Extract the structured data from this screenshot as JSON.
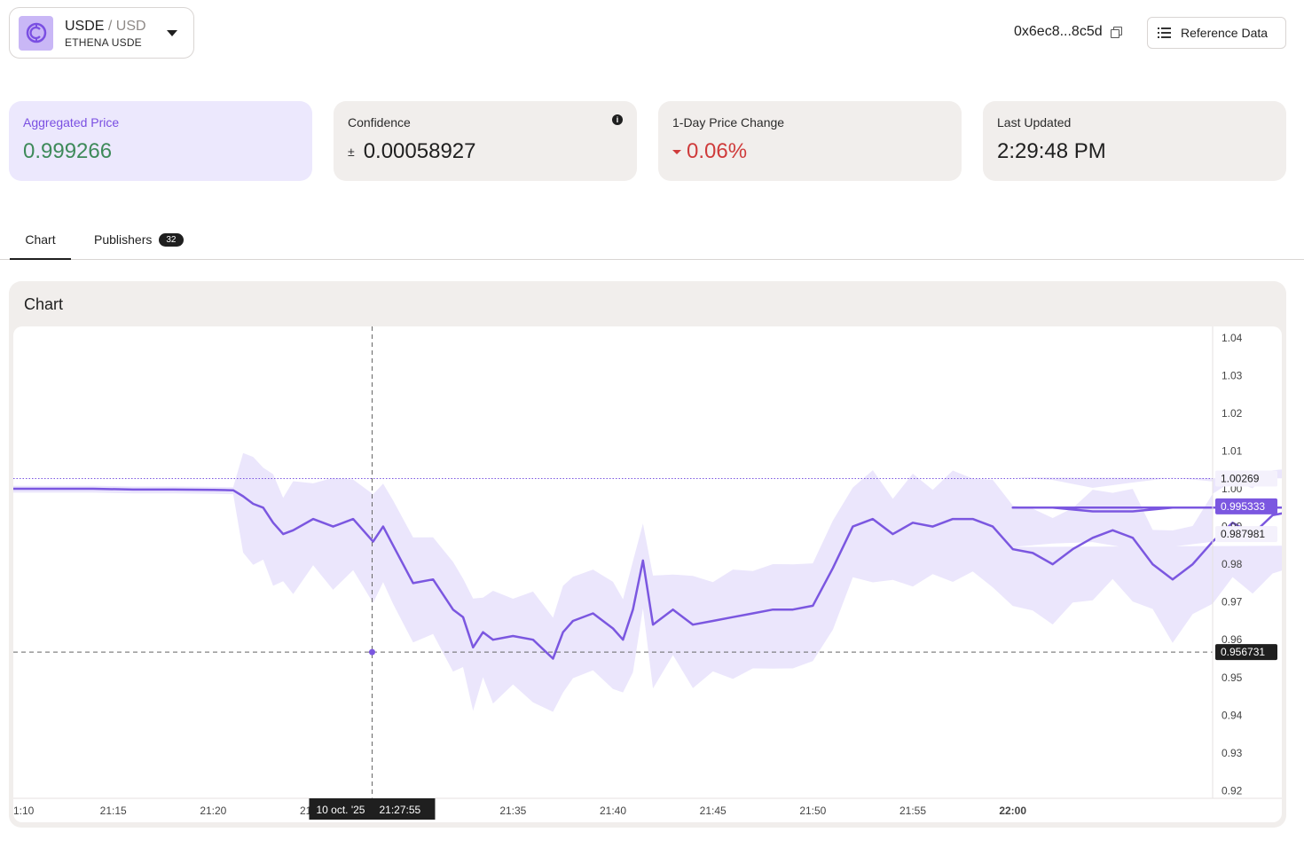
{
  "header": {
    "symbol_base": "USDE",
    "symbol_quote": "/ USD",
    "symbol_desc": "ETHENA USDE",
    "address": "0x6ec8...8c5d",
    "reference_button": "Reference Data"
  },
  "stats": {
    "aggregated_label": "Aggregated Price",
    "aggregated_value": "0.999266",
    "confidence_label": "Confidence",
    "confidence_value": "0.00058927",
    "change_label": "1-Day Price Change",
    "change_value": "0.06%",
    "updated_label": "Last Updated",
    "updated_value": "2:29:48 PM"
  },
  "tabs": {
    "chart": "Chart",
    "publishers": "Publishers",
    "publishers_count": "32"
  },
  "chart_panel": {
    "title": "Chart"
  },
  "colors": {
    "accent": "#7b57e0",
    "band": "#ebe6fc",
    "positive": "#3e8a5a",
    "negative": "#cf3b3b"
  },
  "chart_data": {
    "type": "line",
    "x_ticks": [
      "1:10",
      "21:15",
      "21:20",
      "21:25",
      "21:30",
      "21:35",
      "21:40",
      "21:45",
      "21:50",
      "21:55",
      "22:00"
    ],
    "y_ticks": [
      "1.04",
      "1.03",
      "1.02",
      "1.01",
      "1.00",
      "0.99",
      "0.98",
      "0.97",
      "0.96",
      "0.95",
      "0.94",
      "0.93",
      "0.92"
    ],
    "ylim": [
      0.918,
      1.043
    ],
    "series": [
      {
        "values": [
          [
            21.1,
            1.0
          ],
          [
            21.12,
            1.0
          ],
          [
            21.14,
            1.0
          ],
          [
            21.16,
            0.9998
          ],
          [
            21.18,
            0.9998
          ],
          [
            21.2,
            0.9997
          ],
          [
            21.21,
            0.9996
          ],
          [
            21.215,
            0.998
          ],
          [
            21.22,
            0.996
          ],
          [
            21.225,
            0.995
          ],
          [
            21.23,
            0.991
          ],
          [
            21.235,
            0.988
          ],
          [
            21.24,
            0.989
          ],
          [
            21.25,
            0.992
          ],
          [
            21.26,
            0.99
          ],
          [
            21.27,
            0.992
          ],
          [
            21.28,
            0.986
          ],
          [
            21.285,
            0.99
          ],
          [
            21.29,
            0.985
          ],
          [
            21.3,
            0.975
          ],
          [
            21.31,
            0.976
          ],
          [
            21.32,
            0.968
          ],
          [
            21.325,
            0.966
          ],
          [
            21.33,
            0.958
          ],
          [
            21.335,
            0.962
          ],
          [
            21.34,
            0.96
          ],
          [
            21.35,
            0.961
          ],
          [
            21.36,
            0.96
          ],
          [
            21.37,
            0.955
          ],
          [
            21.375,
            0.962
          ],
          [
            21.38,
            0.965
          ],
          [
            21.39,
            0.967
          ],
          [
            21.4,
            0.963
          ],
          [
            21.405,
            0.96
          ],
          [
            21.41,
            0.968
          ],
          [
            21.415,
            0.981
          ],
          [
            21.42,
            0.964
          ],
          [
            21.43,
            0.968
          ],
          [
            21.44,
            0.964
          ],
          [
            21.45,
            0.965
          ],
          [
            21.46,
            0.966
          ],
          [
            21.47,
            0.967
          ],
          [
            21.48,
            0.968
          ],
          [
            21.49,
            0.968
          ],
          [
            21.5,
            0.969
          ],
          [
            21.51,
            0.979
          ],
          [
            21.52,
            0.99
          ],
          [
            21.53,
            0.992
          ],
          [
            21.54,
            0.988
          ],
          [
            21.55,
            0.991
          ],
          [
            21.56,
            0.99
          ],
          [
            21.57,
            0.992
          ],
          [
            21.58,
            0.992
          ],
          [
            21.59,
            0.99
          ],
          [
            21.6,
            0.984
          ],
          [
            21.61,
            0.983
          ],
          [
            21.62,
            0.98
          ],
          [
            21.63,
            0.984
          ],
          [
            21.64,
            0.987
          ],
          [
            21.65,
            0.989
          ],
          [
            21.66,
            0.987
          ],
          [
            21.67,
            0.98
          ],
          [
            21.68,
            0.976
          ],
          [
            21.69,
            0.98
          ],
          [
            21.7,
            0.986
          ],
          [
            21.71,
            0.991
          ],
          [
            21.72,
            0.988
          ],
          [
            21.73,
            0.993
          ],
          [
            21.74,
            0.994
          ],
          [
            21.75,
            0.993
          ],
          [
            21.76,
            0.995
          ],
          [
            21.77,
            0.996
          ],
          [
            21.78,
            0.995
          ],
          [
            21.79,
            0.993
          ],
          [
            21.8,
            0.992
          ],
          [
            21.82,
            0.994
          ],
          [
            21.84,
            0.994
          ],
          [
            21.86,
            0.994
          ],
          [
            21.88,
            0.995
          ],
          [
            21.9,
            0.994
          ],
          [
            21.92,
            0.995
          ],
          [
            21.94,
            0.994
          ],
          [
            21.96,
            0.995
          ],
          [
            21.98,
            0.995
          ],
          [
            22.0,
            0.995
          ],
          [
            22.02,
            0.995
          ],
          [
            22.04,
            0.994
          ],
          [
            22.06,
            0.994
          ],
          [
            22.08,
            0.995
          ],
          [
            22.1,
            0.995
          ]
        ]
      }
    ],
    "markers": {
      "high_label": "1.00269",
      "current_label": "0.995333",
      "low_band_label": "0.987981",
      "crosshair_label": "0.956731",
      "crosshair_time_date": "10 oct. '25",
      "crosshair_time": "21:27:55"
    }
  }
}
